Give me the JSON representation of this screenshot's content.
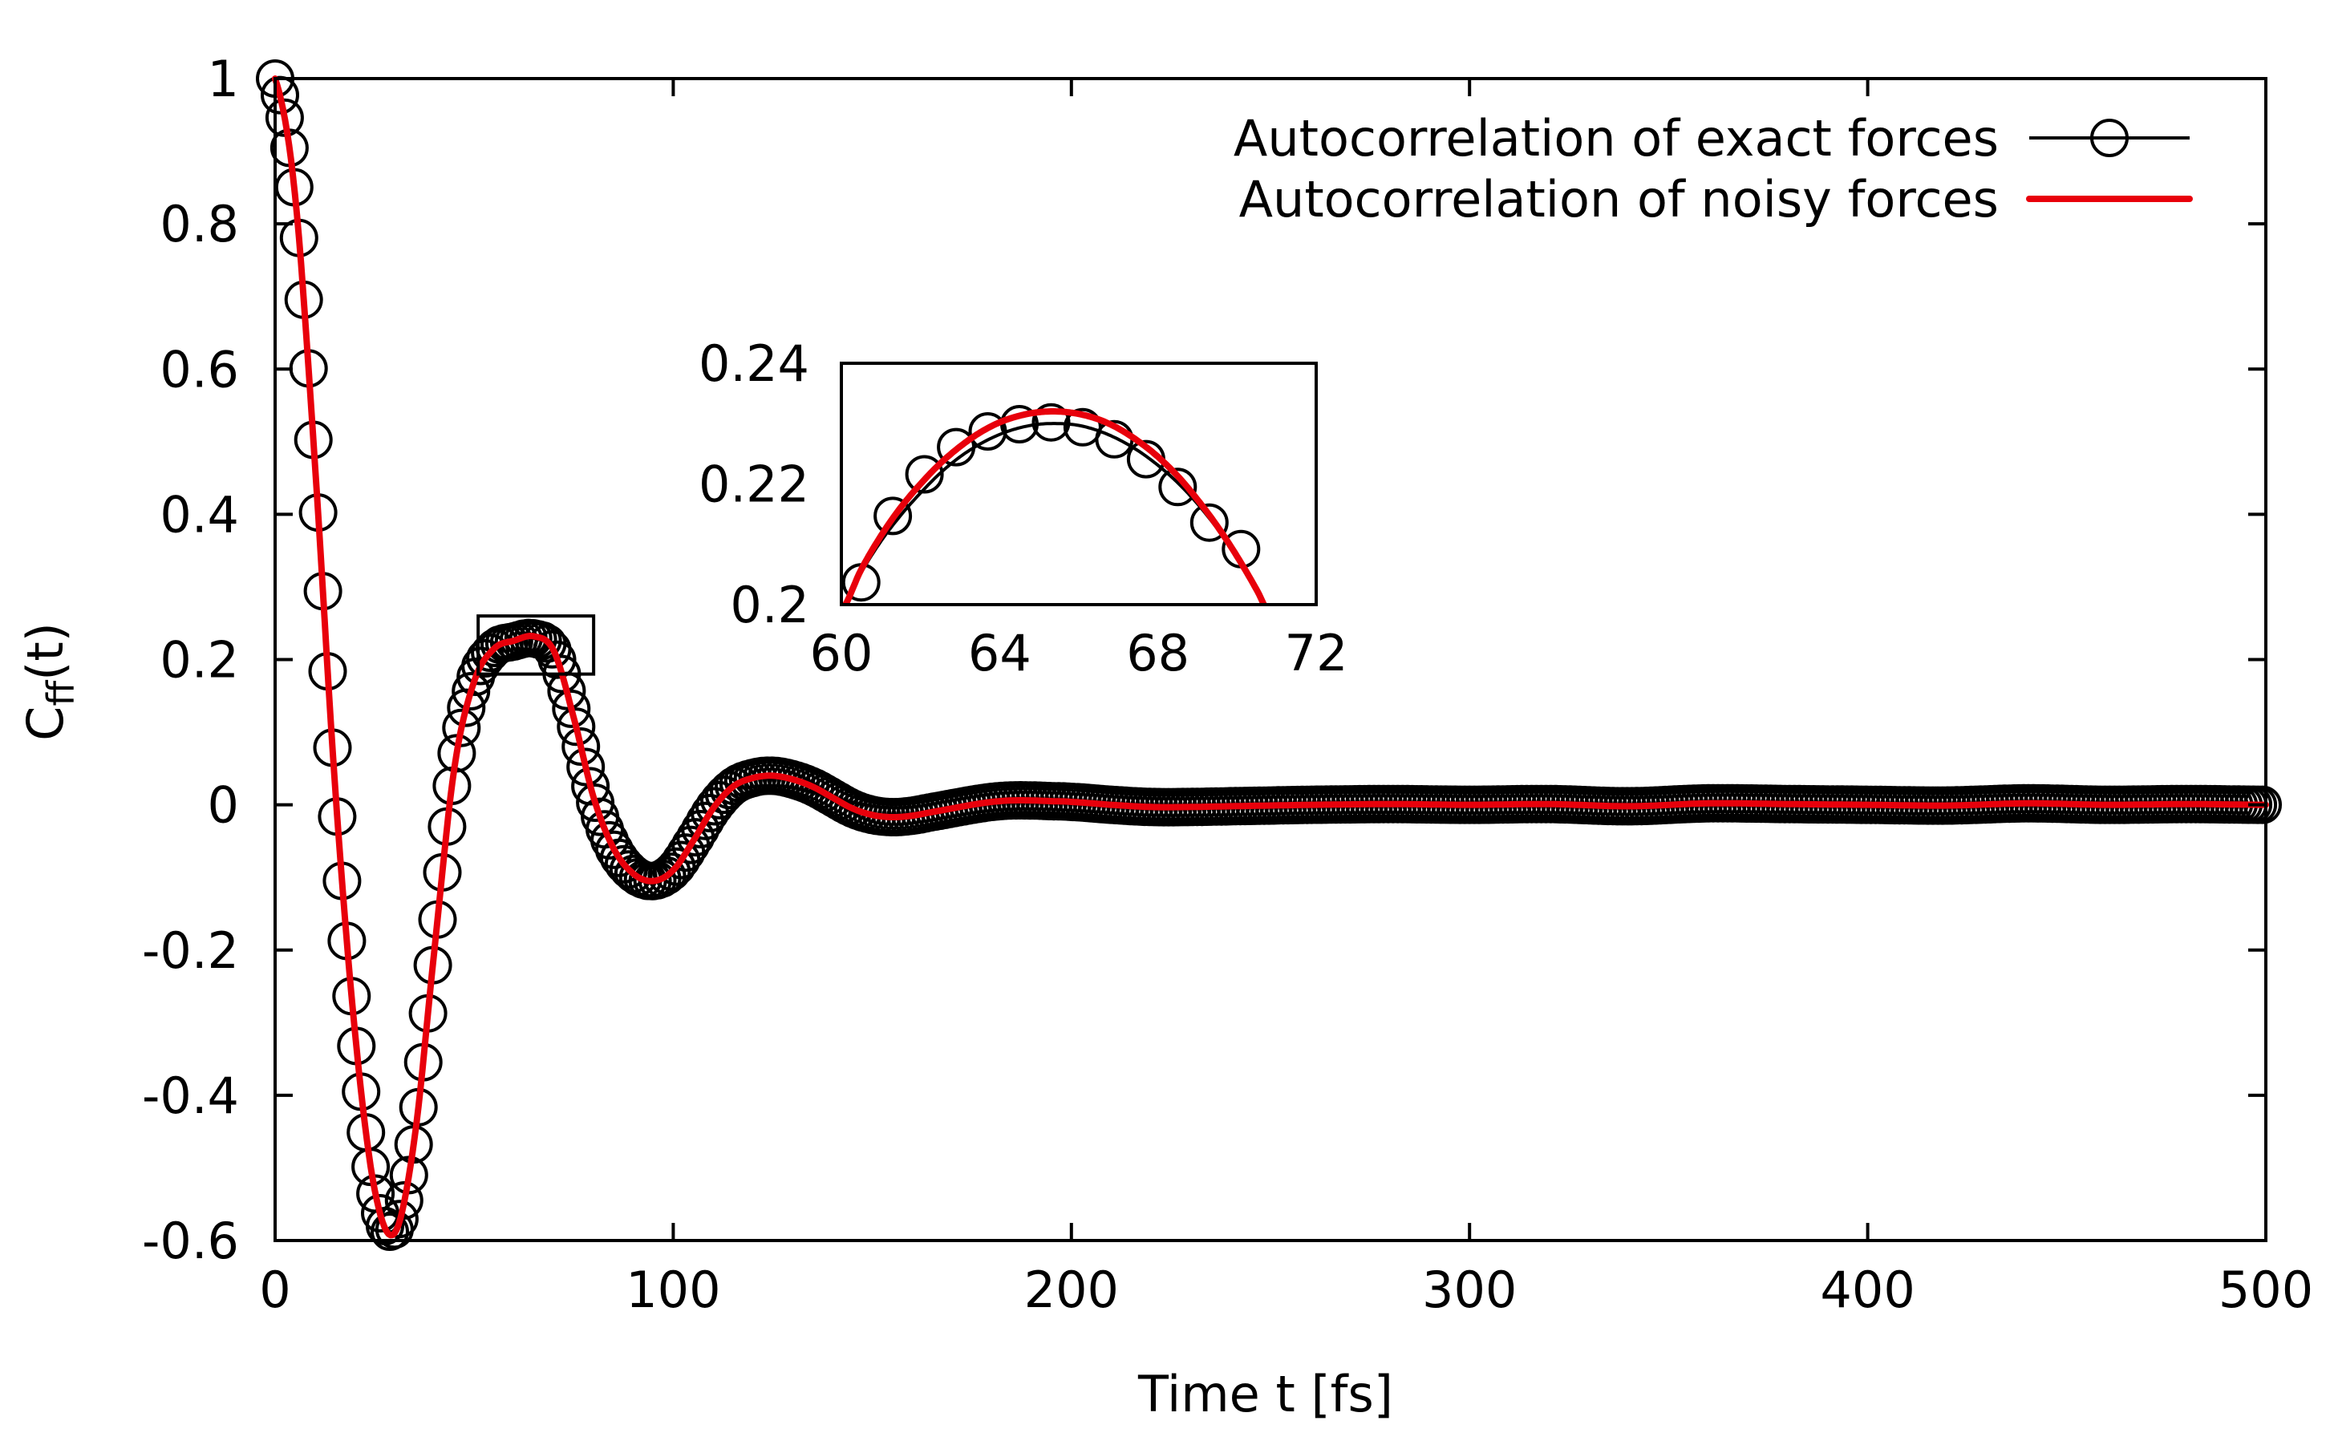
{
  "chart_data": {
    "type": "line",
    "title": "",
    "xlabel": "Time t [fs]",
    "ylabel_main": "C",
    "ylabel_sub": "ff",
    "ylabel_tail": "(t)",
    "xlim": [
      0,
      500
    ],
    "ylim": [
      -0.6,
      1.0
    ],
    "x_ticks": [
      "0",
      "100",
      "200",
      "300",
      "400",
      "500"
    ],
    "y_ticks": [
      "-0.6",
      "-0.4",
      "-0.2",
      "0",
      "0.2",
      "0.4",
      "0.6",
      "0.8",
      "1"
    ],
    "legend_position": "top-right",
    "colors": {
      "exact": "#000000",
      "noisy": "#e8000b"
    },
    "series": [
      {
        "name": "Autocorrelation of exact forces",
        "style": "line with open circles",
        "x": [
          0,
          5,
          10,
          15,
          20,
          25,
          30,
          35,
          40,
          45,
          50,
          55,
          60,
          65,
          70,
          75,
          80,
          85,
          90,
          95,
          100,
          105,
          110,
          115,
          120,
          125,
          130,
          135,
          140,
          145,
          150,
          155,
          160,
          165,
          170,
          175,
          180,
          185,
          190,
          195,
          200,
          210,
          220,
          230,
          240,
          250,
          260,
          280,
          300,
          320,
          340,
          360,
          380,
          400,
          420,
          440,
          460,
          480,
          500
        ],
        "values": [
          1.0,
          0.84,
          0.47,
          0.03,
          -0.31,
          -0.53,
          -0.585,
          -0.46,
          -0.2,
          0.05,
          0.17,
          0.215,
          0.225,
          0.229,
          0.21,
          0.12,
          0.01,
          -0.06,
          -0.095,
          -0.105,
          -0.09,
          -0.05,
          -0.005,
          0.025,
          0.037,
          0.04,
          0.035,
          0.025,
          0.01,
          -0.005,
          -0.014,
          -0.017,
          -0.015,
          -0.01,
          -0.005,
          0.0,
          0.004,
          0.006,
          0.006,
          0.005,
          0.004,
          0.0,
          -0.003,
          -0.003,
          -0.002,
          -0.001,
          0.0,
          0.001,
          0.0,
          0.001,
          -0.002,
          0.002,
          0.001,
          0.0,
          -0.001,
          0.002,
          0.0,
          0.001,
          0.0
        ]
      },
      {
        "name": "Autocorrelation of noisy forces",
        "style": "line",
        "x": [
          0,
          5,
          10,
          15,
          20,
          25,
          30,
          35,
          40,
          45,
          50,
          55,
          60,
          65,
          70,
          75,
          80,
          85,
          90,
          95,
          100,
          105,
          110,
          115,
          120,
          125,
          130,
          135,
          140,
          145,
          150,
          155,
          160,
          165,
          170,
          175,
          180,
          185,
          190,
          195,
          200,
          210,
          220,
          230,
          240,
          250,
          260,
          280,
          300,
          320,
          340,
          360,
          380,
          400,
          420,
          440,
          460,
          480,
          500
        ],
        "values": [
          1.0,
          0.84,
          0.47,
          0.03,
          -0.31,
          -0.53,
          -0.59,
          -0.46,
          -0.2,
          0.05,
          0.17,
          0.215,
          0.226,
          0.232,
          0.212,
          0.12,
          0.01,
          -0.06,
          -0.095,
          -0.105,
          -0.09,
          -0.05,
          -0.005,
          0.025,
          0.037,
          0.04,
          0.035,
          0.025,
          0.01,
          -0.005,
          -0.014,
          -0.017,
          -0.015,
          -0.01,
          -0.005,
          0.0,
          0.004,
          0.006,
          0.006,
          0.005,
          0.004,
          0.0,
          -0.003,
          -0.003,
          -0.002,
          -0.001,
          0.0,
          0.001,
          0.0,
          0.001,
          -0.002,
          0.002,
          0.001,
          0.0,
          -0.001,
          0.002,
          0.0,
          0.001,
          0.0
        ]
      }
    ],
    "inset": {
      "xlim": [
        60,
        72
      ],
      "ylim": [
        0.2,
        0.24
      ],
      "x_ticks": [
        "60",
        "64",
        "68",
        "72"
      ],
      "y_ticks": [
        "0.2",
        "0.22",
        "0.24"
      ],
      "zoom_region_on_main": {
        "x": [
          51,
          80
        ],
        "y": [
          0.18,
          0.26
        ]
      },
      "series": [
        {
          "name": "Autocorrelation of exact forces",
          "x": [
            60.0,
            60.5,
            61.0,
            61.5,
            62.0,
            62.5,
            63.0,
            63.5,
            64.0,
            64.5,
            65.0,
            65.5,
            66.0,
            66.5,
            67.0,
            67.5,
            68.0,
            68.5,
            69.0,
            69.5,
            70.0,
            70.5,
            71.0
          ],
          "values": [
            0.199,
            0.2053,
            0.2105,
            0.2148,
            0.2185,
            0.2218,
            0.2245,
            0.2266,
            0.2282,
            0.2293,
            0.2299,
            0.23,
            0.2297,
            0.2288,
            0.2274,
            0.2255,
            0.2231,
            0.2202,
            0.2167,
            0.2126,
            0.208,
            0.2027,
            0.1968
          ]
        },
        {
          "name": "Autocorrelation of noisy forces",
          "x": [
            60.0,
            60.5,
            61.0,
            61.5,
            62.0,
            62.5,
            63.0,
            63.5,
            64.0,
            64.5,
            65.0,
            65.5,
            66.0,
            66.5,
            67.0,
            67.5,
            68.0,
            68.5,
            69.0,
            69.5,
            70.0,
            70.5,
            71.0
          ],
          "values": [
            0.199,
            0.2058,
            0.2114,
            0.2161,
            0.22,
            0.2234,
            0.2262,
            0.2285,
            0.2302,
            0.2313,
            0.2319,
            0.232,
            0.2316,
            0.2307,
            0.2292,
            0.2271,
            0.2245,
            0.2213,
            0.2174,
            0.213,
            0.208,
            0.2024,
            0.1962
          ]
        }
      ],
      "markers_x": [
        60.5,
        61.3,
        62.1,
        62.9,
        63.7,
        64.5,
        65.3,
        66.1,
        66.9,
        67.7,
        68.5,
        69.3,
        70.1
      ],
      "markers_y": [
        0.2037,
        0.2147,
        0.2216,
        0.2261,
        0.2287,
        0.2299,
        0.2302,
        0.2294,
        0.2274,
        0.2241,
        0.2195,
        0.2136,
        0.2092
      ]
    }
  }
}
